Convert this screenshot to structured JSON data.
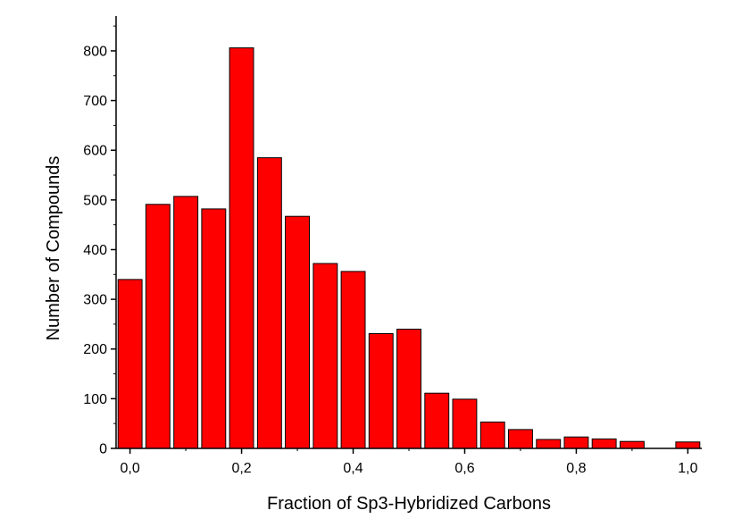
{
  "chart_data": {
    "type": "bar",
    "title": "",
    "xlabel": "Fraction of Sp3-Hybridized Carbons",
    "ylabel": "Number of Compounds",
    "bar_color": "#ff0000",
    "bar_edge_color": "#000000",
    "xlim": [
      -0.025,
      1.025
    ],
    "ylim": [
      0,
      870
    ],
    "x_bin_width": 0.05,
    "x": [
      0.0,
      0.05,
      0.1,
      0.15,
      0.2,
      0.25,
      0.3,
      0.35,
      0.4,
      0.45,
      0.5,
      0.55,
      0.6,
      0.65,
      0.7,
      0.75,
      0.8,
      0.85,
      0.9,
      0.95,
      1.0
    ],
    "values": [
      340,
      491,
      507,
      482,
      806,
      585,
      467,
      372,
      356,
      231,
      240,
      111,
      99,
      53,
      38,
      18,
      23,
      19,
      14,
      0,
      13
    ],
    "x_ticks": [
      0.0,
      0.2,
      0.4,
      0.6,
      0.8,
      1.0
    ],
    "x_tick_labels": [
      "0,0",
      "0,2",
      "0,4",
      "0,6",
      "0,8",
      "1,0"
    ],
    "y_ticks": [
      0,
      100,
      200,
      300,
      400,
      500,
      600,
      700,
      800
    ],
    "y_tick_labels": [
      "0",
      "100",
      "200",
      "300",
      "400",
      "500",
      "600",
      "700",
      "800"
    ],
    "grid": false,
    "legend": "none"
  }
}
